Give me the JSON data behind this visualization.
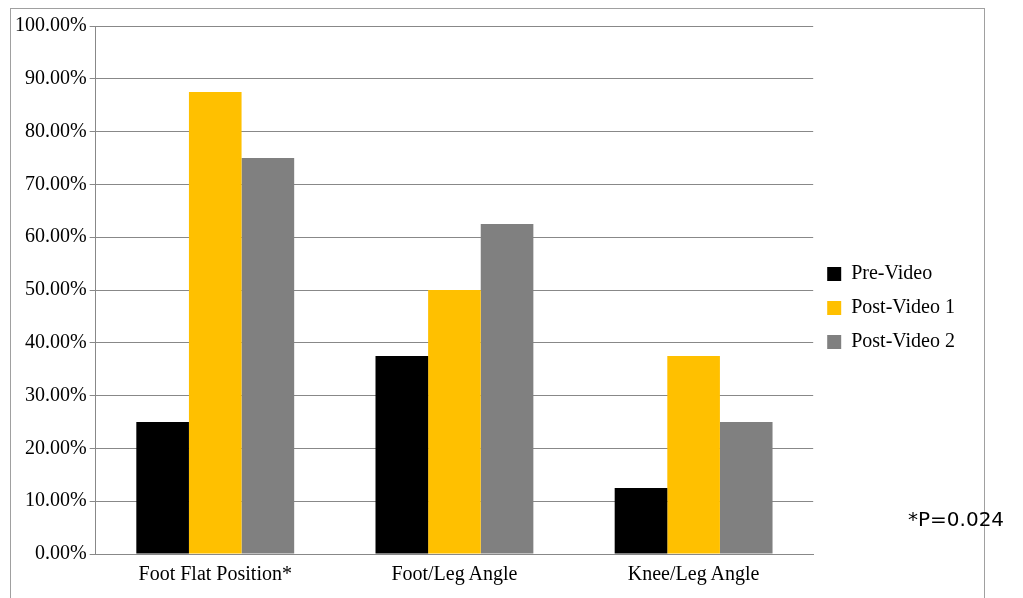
{
  "chart_data": {
    "type": "bar",
    "categories": [
      "Foot Flat Position*",
      "Foot/Leg Angle",
      "Knee/Leg Angle"
    ],
    "series": [
      {
        "name": "Pre-Video",
        "color": "#000000",
        "values": [
          25,
          37.5,
          12.5
        ]
      },
      {
        "name": "Post-Video 1",
        "color": "#ffc000",
        "values": [
          87.5,
          50,
          37.5
        ]
      },
      {
        "name": "Post-Video 2",
        "color": "#808080",
        "values": [
          75,
          62.5,
          25
        ]
      }
    ],
    "ylim": [
      0,
      100
    ],
    "yticks": [
      {
        "value": 0,
        "label": "0.00%"
      },
      {
        "value": 10,
        "label": "10.00%"
      },
      {
        "value": 20,
        "label": "20.00%"
      },
      {
        "value": 30,
        "label": "30.00%"
      },
      {
        "value": 40,
        "label": "40.00%"
      },
      {
        "value": 50,
        "label": "50.00%"
      },
      {
        "value": 60,
        "label": "60.00%"
      },
      {
        "value": 70,
        "label": "70.00%"
      },
      {
        "value": 80,
        "label": "80.00%"
      },
      {
        "value": 90,
        "label": "90.00%"
      },
      {
        "value": 100,
        "label": "100.00%"
      }
    ],
    "grid": "y",
    "legend": "right",
    "annotations": [
      "*P=0.024"
    ]
  }
}
